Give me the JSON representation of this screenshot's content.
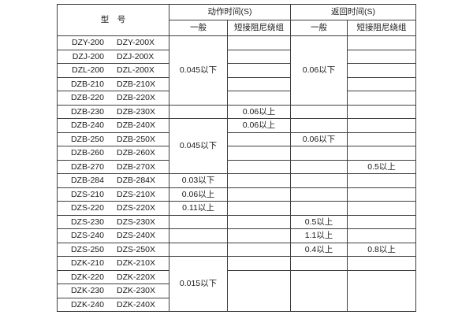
{
  "header": {
    "model_label": "型　号",
    "groups": [
      {
        "label": "动作时间(S)",
        "sub": [
          "一般",
          "短接阻尼绕组"
        ]
      },
      {
        "label": "返回时间(S)",
        "sub": [
          "一般",
          "短接阻尼绕组"
        ]
      }
    ]
  },
  "colors": {
    "border": "#3f3f3f",
    "text": "#1a1a1a",
    "background": "#ffffff"
  },
  "rows": [
    {
      "models": [
        "DZY-200",
        "DZY-200X"
      ],
      "cells": [
        {
          "col": "action_general",
          "text": "0.045以下",
          "rowspan": 5
        },
        {
          "col": "action_damped",
          "text": ""
        },
        {
          "col": "return_general",
          "text": "0.06以下",
          "rowspan": 5
        },
        {
          "col": "return_damped",
          "text": ""
        }
      ]
    },
    {
      "models": [
        "DZJ-200",
        "DZJ-200X"
      ],
      "cells": [
        {
          "col": "action_damped",
          "text": ""
        },
        {
          "col": "return_damped",
          "text": ""
        }
      ]
    },
    {
      "models": [
        "DZL-200",
        "DZL-200X"
      ],
      "cells": [
        {
          "col": "action_damped",
          "text": ""
        },
        {
          "col": "return_damped",
          "text": ""
        }
      ]
    },
    {
      "models": [
        "DZB-210",
        "DZB-210X"
      ],
      "cells": [
        {
          "col": "action_damped",
          "text": ""
        },
        {
          "col": "return_damped",
          "text": ""
        }
      ]
    },
    {
      "models": [
        "DZB-220",
        "DZB-220X"
      ],
      "cells": [
        {
          "col": "action_damped",
          "text": ""
        },
        {
          "col": "return_damped",
          "text": ""
        }
      ]
    },
    {
      "models": [
        "DZB-230",
        "DZB-230X"
      ],
      "cells": [
        {
          "col": "action_general",
          "text": ""
        },
        {
          "col": "action_damped",
          "text": "0.06以上"
        },
        {
          "col": "return_general",
          "text": ""
        },
        {
          "col": "return_damped",
          "text": ""
        }
      ]
    },
    {
      "models": [
        "DZB-240",
        "DZB-240X"
      ],
      "cells": [
        {
          "col": "action_general",
          "text": "0.045以下",
          "rowspan": 4
        },
        {
          "col": "action_damped",
          "text": "0.06以上"
        },
        {
          "col": "return_general",
          "text": ""
        },
        {
          "col": "return_damped",
          "text": ""
        }
      ]
    },
    {
      "models": [
        "DZB-250",
        "DZB-250X"
      ],
      "cells": [
        {
          "col": "action_damped",
          "text": ""
        },
        {
          "col": "return_general",
          "text": "0.06以下"
        },
        {
          "col": "return_damped",
          "text": ""
        }
      ]
    },
    {
      "models": [
        "DZB-260",
        "DZB-260X"
      ],
      "cells": [
        {
          "col": "action_damped",
          "text": ""
        },
        {
          "col": "return_general",
          "text": ""
        },
        {
          "col": "return_damped",
          "text": ""
        }
      ]
    },
    {
      "models": [
        "DZB-270",
        "DZB-270X"
      ],
      "cells": [
        {
          "col": "action_damped",
          "text": ""
        },
        {
          "col": "return_general",
          "text": ""
        },
        {
          "col": "return_damped",
          "text": "0.5以上"
        }
      ]
    },
    {
      "models": [
        "DZB-284",
        "DZB-284X"
      ],
      "cells": [
        {
          "col": "action_general",
          "text": "0.03以下"
        },
        {
          "col": "action_damped",
          "text": ""
        },
        {
          "col": "return_general",
          "text": ""
        },
        {
          "col": "return_damped",
          "text": ""
        }
      ]
    },
    {
      "models": [
        "DZS-210",
        "DZS-210X"
      ],
      "cells": [
        {
          "col": "action_general",
          "text": "0.06以上"
        },
        {
          "col": "action_damped",
          "text": ""
        },
        {
          "col": "return_general",
          "text": ""
        },
        {
          "col": "return_damped",
          "text": ""
        }
      ]
    },
    {
      "models": [
        "DZS-220",
        "DZS-220X"
      ],
      "cells": [
        {
          "col": "action_general",
          "text": "0.11以上"
        },
        {
          "col": "action_damped",
          "text": ""
        },
        {
          "col": "return_general",
          "text": ""
        },
        {
          "col": "return_damped",
          "text": ""
        }
      ]
    },
    {
      "models": [
        "DZS-230",
        "DZS-230X"
      ],
      "cells": [
        {
          "col": "action_general",
          "text": ""
        },
        {
          "col": "action_damped",
          "text": ""
        },
        {
          "col": "return_general",
          "text": "0.5以上"
        },
        {
          "col": "return_damped",
          "text": ""
        }
      ]
    },
    {
      "models": [
        "DZS-240",
        "DZS-240X"
      ],
      "cells": [
        {
          "col": "action_general",
          "text": ""
        },
        {
          "col": "action_damped",
          "text": ""
        },
        {
          "col": "return_general",
          "text": "1.1以上"
        },
        {
          "col": "return_damped",
          "text": ""
        }
      ]
    },
    {
      "models": [
        "DZS-250",
        "DZS-250X"
      ],
      "cells": [
        {
          "col": "action_general",
          "text": ""
        },
        {
          "col": "action_damped",
          "text": ""
        },
        {
          "col": "return_general",
          "text": "0.4以上"
        },
        {
          "col": "return_damped",
          "text": "0.8以上"
        }
      ]
    },
    {
      "models": [
        "DZK-210",
        "DZK-210X"
      ],
      "cells": [
        {
          "col": "action_general",
          "text": "0.015以下",
          "rowspan": 4
        },
        {
          "col": "action_damped",
          "text": ""
        },
        {
          "col": "return_general",
          "text": ""
        },
        {
          "col": "return_damped",
          "text": ""
        }
      ]
    },
    {
      "models": [
        "DZK-220",
        "DZK-220X"
      ],
      "cells": [
        {
          "col": "action_damped",
          "text": "",
          "rowspan": 3
        },
        {
          "col": "return_general",
          "text": "",
          "rowspan": 3
        },
        {
          "col": "return_damped",
          "text": "",
          "rowspan": 3
        }
      ]
    },
    {
      "models": [
        "DZK-230",
        "DZK-230X"
      ],
      "cells": []
    },
    {
      "models": [
        "DZK-240",
        "DZK-240X"
      ],
      "cells": []
    }
  ]
}
